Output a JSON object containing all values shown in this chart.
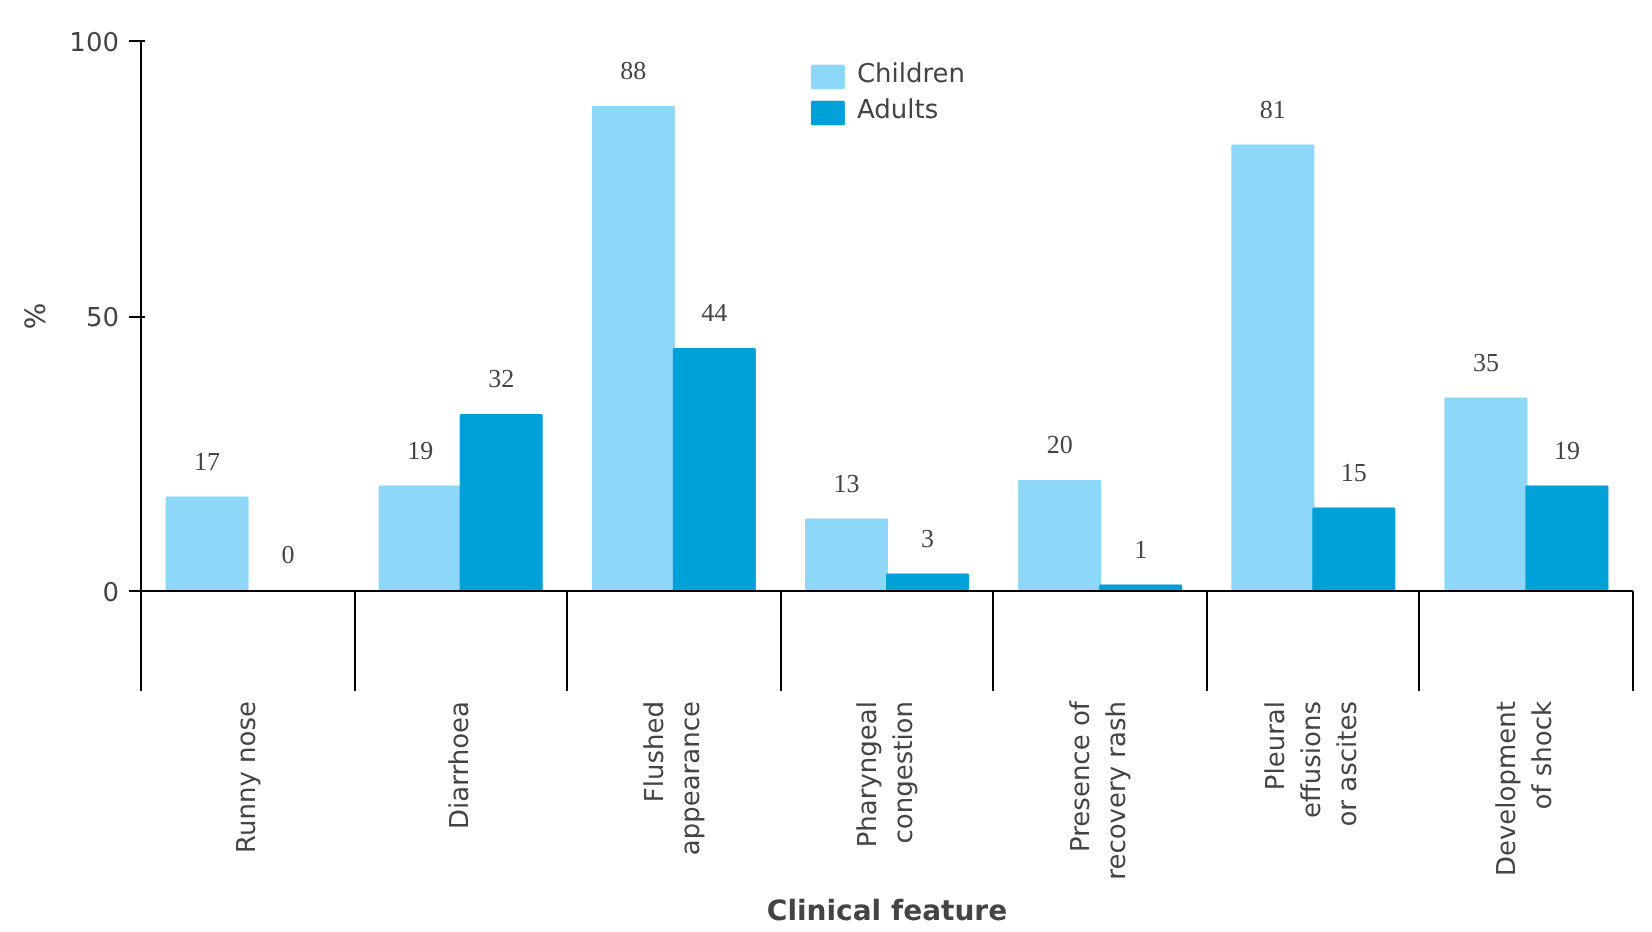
{
  "chart_data": {
    "type": "bar",
    "xlabel": "Clinical feature",
    "ylabel": "%",
    "categories": [
      "Runny nose",
      "Diarrhoea",
      "Flushed\nappearance",
      "Pharyngeal\ncongestion",
      "Presence of\nrecovery rash",
      "Pleural\neffusions\nor ascites",
      "Development\nof shock"
    ],
    "series": [
      {
        "name": "Children",
        "color": "#8dd8f8",
        "values": [
          17,
          19,
          88,
          13,
          20,
          81,
          35
        ]
      },
      {
        "name": "Adults",
        "color": "#00a0d8",
        "values": [
          0,
          32,
          44,
          3,
          1,
          15,
          19
        ]
      }
    ],
    "ylim": [
      0,
      100
    ],
    "yticks": [
      0,
      50,
      100
    ],
    "grid": false,
    "legend": "top",
    "data_labels": true
  }
}
